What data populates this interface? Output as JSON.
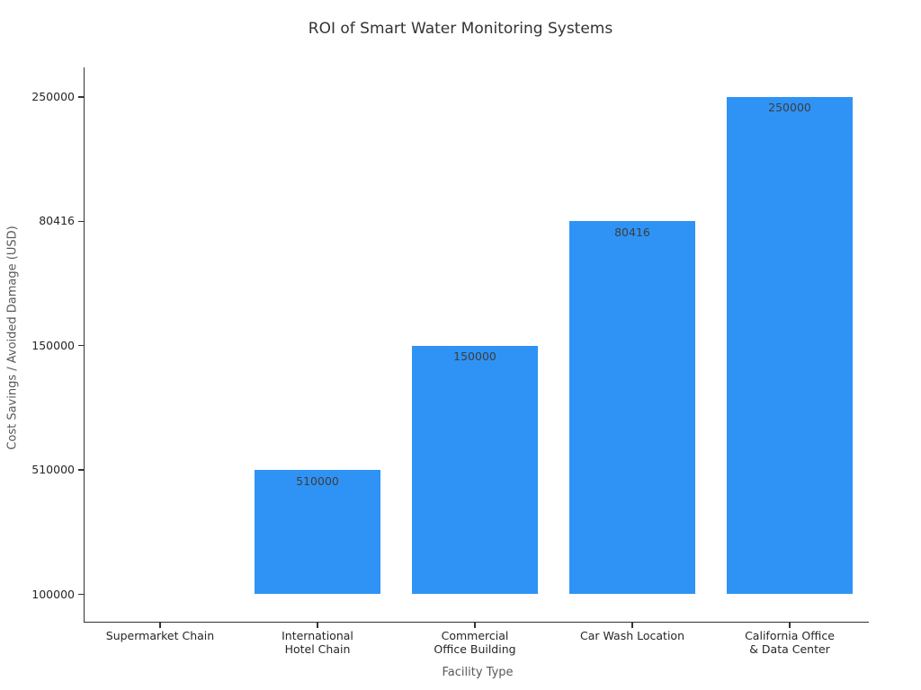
{
  "chart_data": {
    "type": "bar",
    "title": "ROI of Smart Water Monitoring Systems",
    "xlabel": "Facility Type",
    "ylabel": "Cost Savings / Avoided Damage (USD)",
    "categories": [
      "Supermarket Chain",
      "International\nHotel Chain",
      "Commercial\nOffice Building",
      "Car Wash Location",
      "California Office\n& Data Center"
    ],
    "values": [
      100000,
      510000,
      150000,
      80416,
      250000
    ],
    "bar_value_labels": [
      "",
      "510000",
      "150000",
      "80416",
      "250000"
    ],
    "ytick_labels_bottom_to_top": [
      "100000",
      "510000",
      "150000",
      "80416",
      "250000"
    ],
    "layout_hints": {
      "grid": false,
      "legend": false,
      "y_axis_type": "categorical-in-data-order",
      "note": "y ticks evenly spaced in the order values appear, not sorted numerically; Supermarket Chain bar has zero height at baseline 100000 and shows no value label"
    },
    "colors": {
      "bar": "#2f93f5",
      "title_text": "#333333",
      "tick_label_text": "#262626",
      "axis_label_text": "#595959",
      "spine": "#333333",
      "bar_label_text": "#3d3d3d"
    }
  }
}
